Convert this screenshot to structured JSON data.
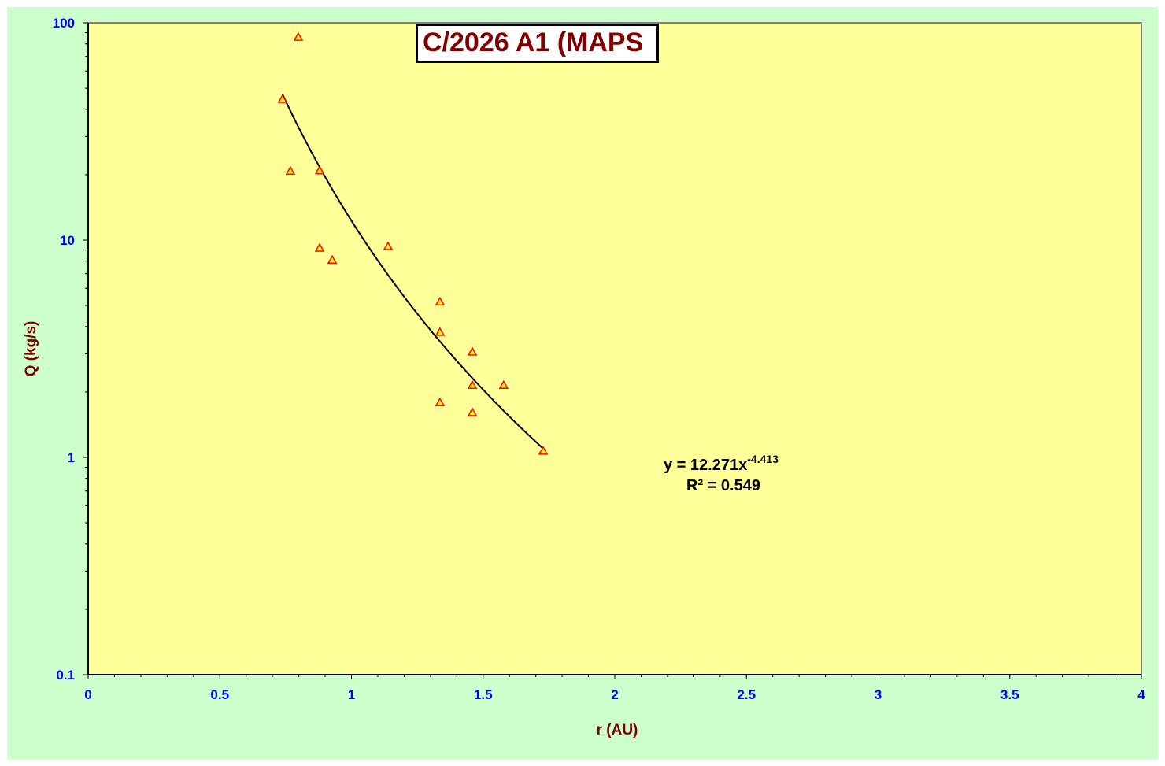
{
  "chart_data": {
    "type": "scatter",
    "title": "C/2026 A1 (MAPS",
    "xlabel": "r (AU)",
    "ylabel": "Q (kg/s)",
    "xlim": [
      0,
      4
    ],
    "ylim": [
      0.1,
      100
    ],
    "yscale": "log",
    "xticks": [
      "0",
      "0.5",
      "1",
      "1.5",
      "2",
      "2.5",
      "3",
      "3.5",
      "4"
    ],
    "xtick_values": [
      0,
      0.5,
      1,
      1.5,
      2,
      2.5,
      3,
      3.5,
      4
    ],
    "yticks": [
      "0.1",
      "1",
      "10",
      "100"
    ],
    "ytick_values": [
      0.1,
      1,
      10,
      100
    ],
    "grid": false,
    "series": [
      {
        "name": "Q",
        "marker": "triangle",
        "x": [
          0.798,
          0.738,
          0.768,
          0.879,
          0.879,
          0.927,
          1.139,
          1.336,
          1.336,
          1.459,
          1.459,
          1.578,
          1.336,
          1.459,
          1.728
        ],
        "y": [
          86,
          44.5,
          20.8,
          20.9,
          9.2,
          8.1,
          9.35,
          5.2,
          3.77,
          3.06,
          2.15,
          2.15,
          1.79,
          1.61,
          1.07
        ]
      }
    ],
    "trendline": {
      "type": "power",
      "a": 12.271,
      "b": -4.413,
      "x_range": [
        0.738,
        1.728
      ]
    },
    "equation": {
      "base": "y = 12.271x",
      "exponent": "-4.413",
      "r2": "R² = 0.549"
    },
    "colors": {
      "panel": "#ccffcc",
      "plot": "#ffff99",
      "marker_fill": "#ffff00",
      "marker_edge": "#ff0000",
      "tick_text": "#0000ff",
      "label_text": "#800000"
    }
  }
}
